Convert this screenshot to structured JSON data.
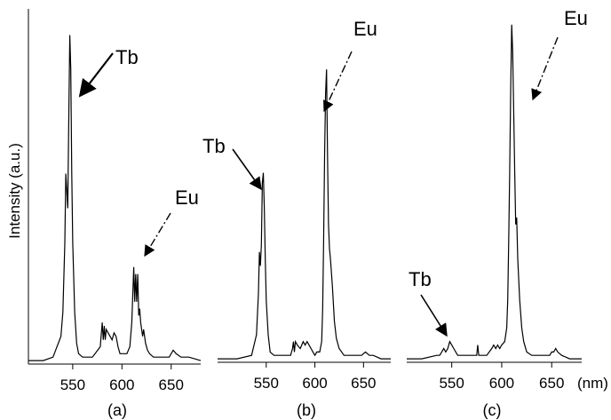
{
  "figure": {
    "ylabel": "Intensity (a.u.)",
    "x_unit": "(nm)"
  },
  "chart_data": [
    {
      "type": "line",
      "panel_label": "(a)",
      "xlabel": "",
      "ylabel": "Intensity (a.u.)",
      "x_ticks": [
        550,
        600,
        650
      ],
      "xlim": [
        505,
        680
      ],
      "ylim": [
        0,
        1
      ],
      "grid": false,
      "legend": "none",
      "series": [
        {
          "x": [
            505,
            520,
            530,
            538,
            540,
            542,
            543,
            544,
            545,
            546,
            547,
            548,
            549,
            550,
            552,
            554,
            556,
            560,
            570,
            578,
            580,
            581,
            582,
            583,
            584,
            586,
            588,
            590,
            592,
            594,
            596,
            598,
            600,
            605,
            608,
            610,
            612,
            613,
            614,
            615,
            616,
            617,
            618,
            619,
            620,
            621,
            622,
            624,
            626,
            628,
            632,
            640,
            648,
            652,
            655,
            660,
            668,
            680
          ],
          "y": [
            0.01,
            0.01,
            0.02,
            0.08,
            0.15,
            0.35,
            0.55,
            0.5,
            0.45,
            0.72,
            0.95,
            0.85,
            0.55,
            0.35,
            0.15,
            0.06,
            0.03,
            0.02,
            0.02,
            0.05,
            0.12,
            0.07,
            0.11,
            0.07,
            0.1,
            0.09,
            0.08,
            0.07,
            0.09,
            0.08,
            0.05,
            0.03,
            0.03,
            0.03,
            0.05,
            0.12,
            0.28,
            0.18,
            0.26,
            0.18,
            0.26,
            0.14,
            0.16,
            0.12,
            0.1,
            0.08,
            0.1,
            0.06,
            0.04,
            0.03,
            0.02,
            0.02,
            0.02,
            0.04,
            0.03,
            0.02,
            0.02,
            0.01
          ]
        }
      ],
      "annotations": [
        {
          "text": "Tb",
          "style": "solid-arrow"
        },
        {
          "text": "Eu",
          "style": "dash-dot-arrow"
        }
      ]
    },
    {
      "type": "line",
      "panel_label": "(b)",
      "xlabel": "",
      "x_ticks": [
        550,
        600,
        650
      ],
      "xlim": [
        500,
        678
      ],
      "ylim": [
        0,
        1
      ],
      "grid": false,
      "legend": "none",
      "series": [
        {
          "x": [
            500,
            520,
            535,
            540,
            542,
            543,
            544,
            545,
            546,
            547,
            548,
            549,
            550,
            552,
            554,
            558,
            565,
            575,
            577,
            578,
            579,
            580,
            582,
            585,
            588,
            590,
            592,
            594,
            596,
            598,
            600,
            602,
            605,
            607,
            608,
            609,
            610,
            611,
            612,
            613,
            614,
            615,
            616,
            618,
            620,
            622,
            625,
            630,
            640,
            648,
            652,
            656,
            660,
            668,
            678
          ],
          "y": [
            0.01,
            0.01,
            0.02,
            0.08,
            0.2,
            0.32,
            0.28,
            0.34,
            0.52,
            0.55,
            0.45,
            0.3,
            0.18,
            0.08,
            0.03,
            0.02,
            0.02,
            0.02,
            0.04,
            0.06,
            0.03,
            0.06,
            0.05,
            0.04,
            0.06,
            0.05,
            0.06,
            0.05,
            0.04,
            0.03,
            0.02,
            0.03,
            0.03,
            0.06,
            0.15,
            0.35,
            0.6,
            0.78,
            0.85,
            0.6,
            0.4,
            0.33,
            0.3,
            0.22,
            0.12,
            0.07,
            0.04,
            0.02,
            0.02,
            0.02,
            0.03,
            0.02,
            0.02,
            0.01,
            0.01
          ]
        }
      ],
      "annotations": [
        {
          "text": "Tb",
          "style": "solid-arrow"
        },
        {
          "text": "Eu",
          "style": "dash-dot-arrow"
        }
      ]
    },
    {
      "type": "line",
      "panel_label": "(c)",
      "xlabel": "",
      "x_ticks": [
        550,
        600,
        650
      ],
      "xlim": [
        505,
        680
      ],
      "ylim": [
        0,
        1
      ],
      "grid": false,
      "legend": "none",
      "series": [
        {
          "x": [
            505,
            520,
            535,
            538,
            540,
            542,
            544,
            546,
            548,
            550,
            552,
            556,
            565,
            572,
            575,
            576,
            577,
            578,
            580,
            585,
            590,
            592,
            594,
            596,
            598,
            600,
            603,
            605,
            606,
            607,
            608,
            609,
            610,
            611,
            612,
            613,
            614,
            615,
            616,
            618,
            620,
            622,
            625,
            630,
            640,
            648,
            650,
            652,
            654,
            656,
            660,
            668,
            680
          ],
          "y": [
            0.01,
            0.01,
            0.02,
            0.02,
            0.03,
            0.04,
            0.03,
            0.04,
            0.06,
            0.05,
            0.04,
            0.02,
            0.02,
            0.02,
            0.02,
            0.05,
            0.02,
            0.02,
            0.02,
            0.02,
            0.04,
            0.05,
            0.04,
            0.05,
            0.04,
            0.05,
            0.06,
            0.1,
            0.18,
            0.35,
            0.55,
            0.8,
            0.98,
            0.9,
            0.72,
            0.55,
            0.4,
            0.42,
            0.3,
            0.18,
            0.1,
            0.06,
            0.03,
            0.02,
            0.02,
            0.02,
            0.03,
            0.03,
            0.04,
            0.03,
            0.02,
            0.01,
            0.01
          ]
        }
      ],
      "annotations": [
        {
          "text": "Tb",
          "style": "solid-arrow"
        },
        {
          "text": "Eu",
          "style": "dash-dot-arrow"
        }
      ]
    }
  ]
}
